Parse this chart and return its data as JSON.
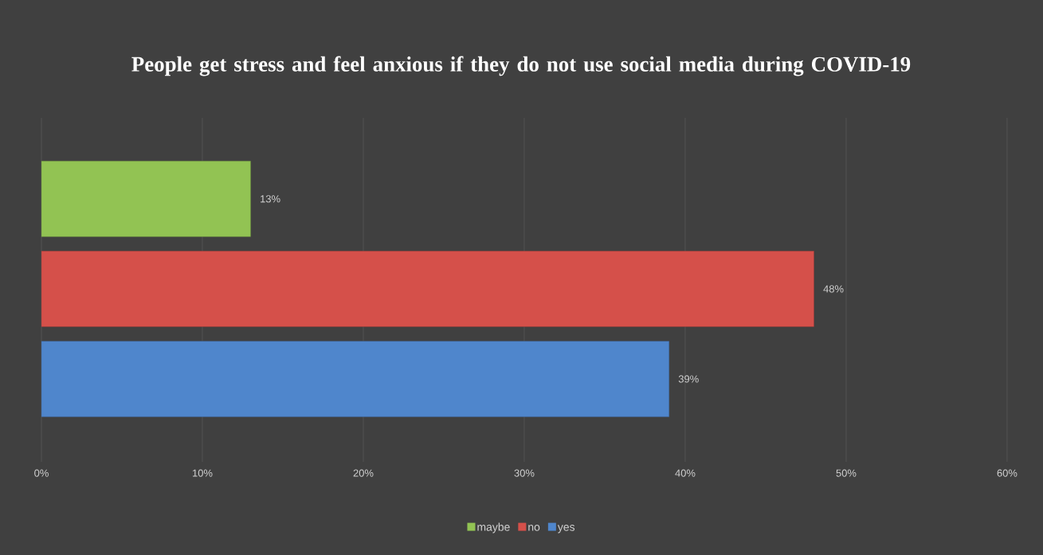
{
  "chart_data": {
    "type": "bar",
    "orientation": "horizontal",
    "title": "People get stress and feel anxious if they do not use social media during COVID-19",
    "categories": [
      null
    ],
    "series": [
      {
        "name": "maybe",
        "color": "#92c353",
        "values": [
          13
        ],
        "value_labels": [
          "13%"
        ]
      },
      {
        "name": "no",
        "color": "#d5504a",
        "values": [
          48
        ],
        "value_labels": [
          "48%"
        ]
      },
      {
        "name": "yes",
        "color": "#4f86cc",
        "values": [
          39
        ],
        "value_labels": [
          "39%"
        ]
      }
    ],
    "xlim": [
      0,
      60
    ],
    "xticks": [
      {
        "value": 0,
        "label": "0%"
      },
      {
        "value": 10,
        "label": "10%"
      },
      {
        "value": 20,
        "label": "20%"
      },
      {
        "value": 30,
        "label": "30%"
      },
      {
        "value": 40,
        "label": "40%"
      },
      {
        "value": 50,
        "label": "50%"
      },
      {
        "value": 60,
        "label": "60%"
      }
    ],
    "grid": "x",
    "legend": "bottom"
  }
}
